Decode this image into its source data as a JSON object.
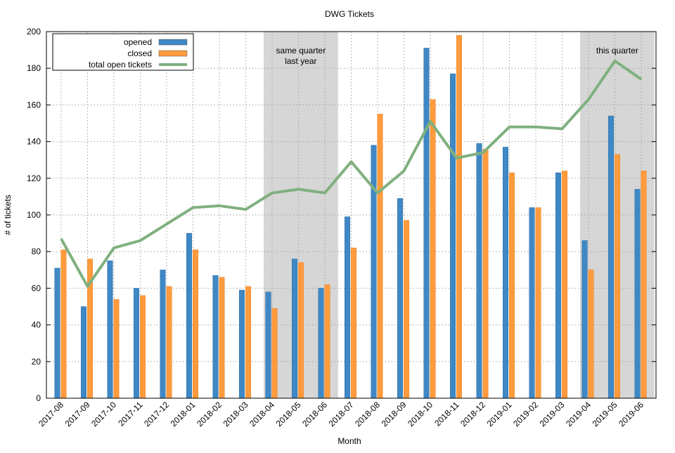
{
  "chart_data": {
    "type": "bar",
    "title": "DWG Tickets",
    "x_label": "Month",
    "y_label": "# of tickets",
    "categories": [
      "2017-08",
      "2017-09",
      "2017-10",
      "2017-11",
      "2017-12",
      "2018-01",
      "2018-02",
      "2018-03",
      "2018-04",
      "2018-05",
      "2018-06",
      "2018-07",
      "2018-08",
      "2018-09",
      "2018-10",
      "2018-11",
      "2018-12",
      "2019-01",
      "2019-02",
      "2019-03",
      "2019-04",
      "2019-05",
      "2019-06"
    ],
    "series": [
      {
        "name": "opened",
        "color": "#3f88c5",
        "type": "bar",
        "values": [
          71,
          50,
          75,
          60,
          70,
          90,
          67,
          59,
          58,
          76,
          60,
          99,
          138,
          109,
          191,
          177,
          139,
          137,
          104,
          123,
          86,
          154,
          114
        ]
      },
      {
        "name": "closed",
        "color": "#ff9b3d",
        "type": "bar",
        "values": [
          81,
          76,
          54,
          56,
          61,
          81,
          66,
          61,
          49,
          74,
          62,
          82,
          155,
          97,
          163,
          198,
          136,
          123,
          104,
          124,
          70,
          133,
          124
        ]
      },
      {
        "name": "total open tickets",
        "color": "#7fb07f",
        "type": "line",
        "values": [
          87,
          61,
          82,
          86,
          95,
          104,
          105,
          103,
          112,
          114,
          112,
          129,
          112,
          124,
          151,
          131,
          134,
          148,
          148,
          147,
          163,
          184,
          174
        ]
      }
    ],
    "ylim": [
      0,
      200
    ],
    "yticks": [
      0,
      20,
      40,
      60,
      80,
      100,
      120,
      140,
      160,
      180,
      200
    ],
    "grid": true,
    "legend": "top-left",
    "annotations": [
      {
        "lines": [
          "same quarter",
          "last year"
        ]
      },
      {
        "lines": [
          "this quarter"
        ]
      }
    ]
  }
}
